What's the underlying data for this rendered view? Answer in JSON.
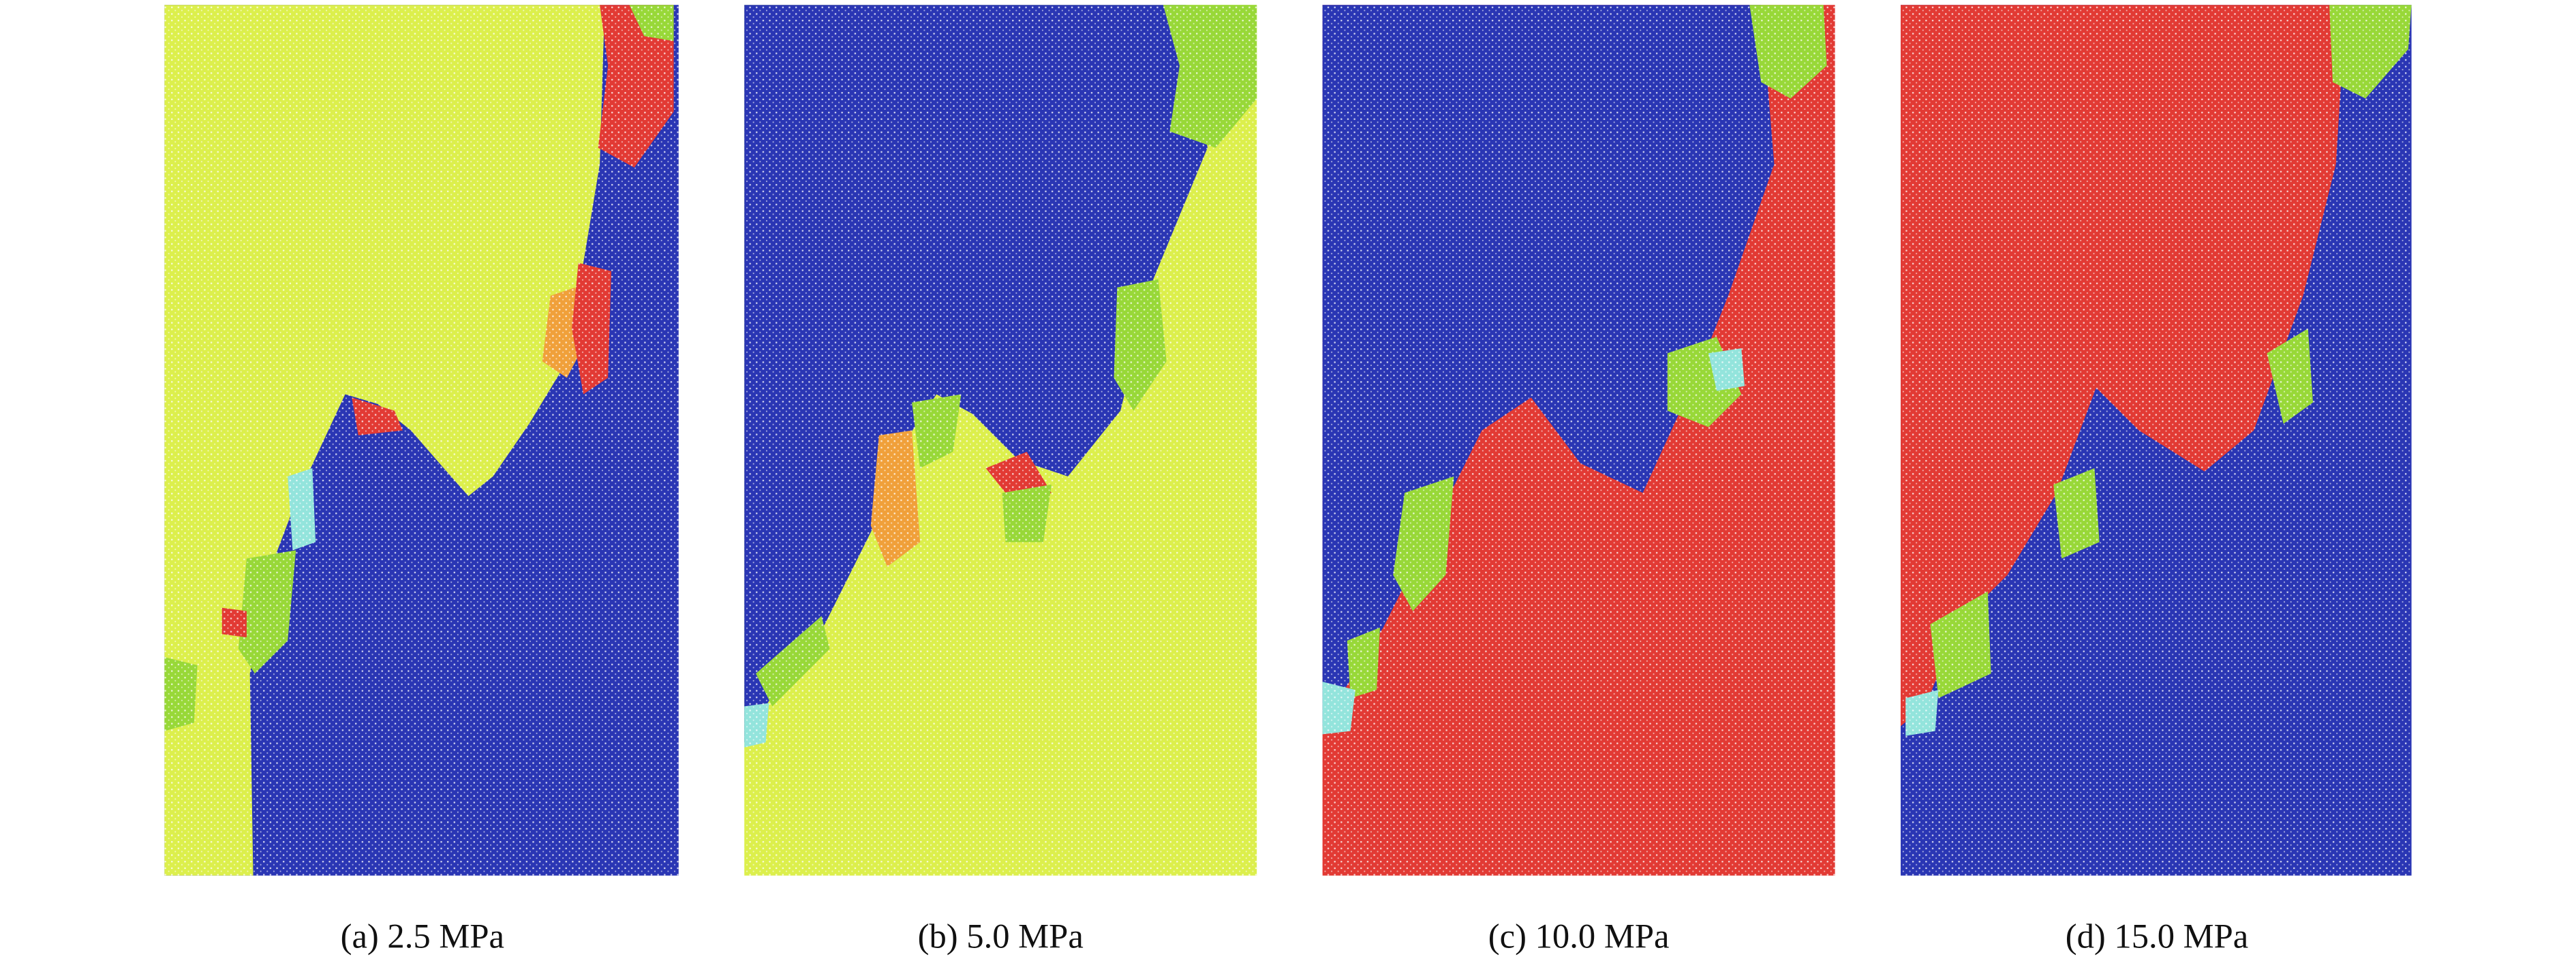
{
  "panels": [
    {
      "caption": "(a) 2.5 MPa"
    },
    {
      "caption": "(b) 5.0 MPa"
    },
    {
      "caption": "(c) 10.0 MPa"
    },
    {
      "caption": "(d) 15.0 MPa"
    }
  ]
}
